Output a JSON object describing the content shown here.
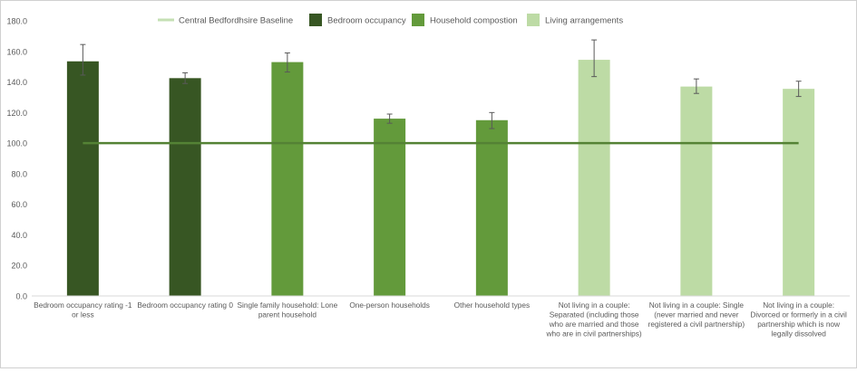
{
  "chart_data": {
    "type": "bar",
    "title": "",
    "xlabel": "",
    "ylabel": "",
    "ylim": [
      0,
      180
    ],
    "yticks": [
      "0.0",
      "20.0",
      "40.0",
      "60.0",
      "80.0",
      "100.0",
      "120.0",
      "140.0",
      "160.0",
      "180.0"
    ],
    "grid": false,
    "legend_position": "top",
    "legend": [
      {
        "name": "Central Bedfordhsire Baseline",
        "kind": "line",
        "color": "#c5e0b4"
      },
      {
        "name": "Bedroom occupancy",
        "kind": "box",
        "color": "#375623"
      },
      {
        "name": "Household compostion",
        "kind": "box",
        "color": "#639a3b"
      },
      {
        "name": "Living arrangements",
        "kind": "box",
        "color": "#bddba5"
      }
    ],
    "categories": [
      {
        "label": "Bedroom occupancy rating -1 or less",
        "lines": [
          "Bedroom occupancy rating -1",
          "or less"
        ],
        "group": "Bedroom occupancy",
        "value": 153.5,
        "err_low": 144.5,
        "err_high": 164.5,
        "color": "#375623"
      },
      {
        "label": "Bedroom occupancy rating 0",
        "lines": [
          "Bedroom occupancy rating 0"
        ],
        "group": "Bedroom occupancy",
        "value": 142.5,
        "err_low": 139.0,
        "err_high": 146.0,
        "color": "#375623"
      },
      {
        "label": "Single family household: Lone parent household",
        "lines": [
          "Single family household: Lone",
          "parent household"
        ],
        "group": "Household compostion",
        "value": 153.0,
        "err_low": 146.5,
        "err_high": 159.0,
        "color": "#639a3b"
      },
      {
        "label": "One-person households",
        "lines": [
          "One-person households"
        ],
        "group": "Household compostion",
        "value": 116.0,
        "err_low": 113.0,
        "err_high": 119.0,
        "color": "#639a3b"
      },
      {
        "label": "Other household types",
        "lines": [
          "Other household types"
        ],
        "group": "Household compostion",
        "value": 115.0,
        "err_low": 109.5,
        "err_high": 120.0,
        "color": "#639a3b"
      },
      {
        "label": "Not living in a couple: Separated (including those who are married and those who are in civil partnerships)",
        "lines": [
          "Not living in a couple:",
          "Separated (including those",
          "who are married and those",
          "who are in civil partnerships)"
        ],
        "group": "Living arrangements",
        "value": 154.5,
        "err_low": 143.5,
        "err_high": 167.5,
        "color": "#bddba5"
      },
      {
        "label": "Not living in a couple: Single (never married and never registered a civil partnership)",
        "lines": [
          "Not living in a couple: Single",
          "(never married and never",
          "registered a civil partnership)"
        ],
        "group": "Living arrangements",
        "value": 137.0,
        "err_low": 132.5,
        "err_high": 142.0,
        "color": "#bddba5"
      },
      {
        "label": "Not living in a couple: Divorced or formerly in a civil partnership which is now legally dissolved",
        "lines": [
          "Not living in a couple:",
          "Divorced or formerly in a civil",
          "partnership which is now",
          "legally dissolved"
        ],
        "group": "Living arrangements",
        "value": 135.5,
        "err_low": 130.5,
        "err_high": 140.5,
        "color": "#bddba5"
      }
    ],
    "baseline": {
      "name": "Central Bedfordhsire Baseline",
      "value": 100,
      "color": "#548235"
    },
    "colors": {
      "axis": "#d9d9d9",
      "error_bar": "#595959"
    }
  }
}
